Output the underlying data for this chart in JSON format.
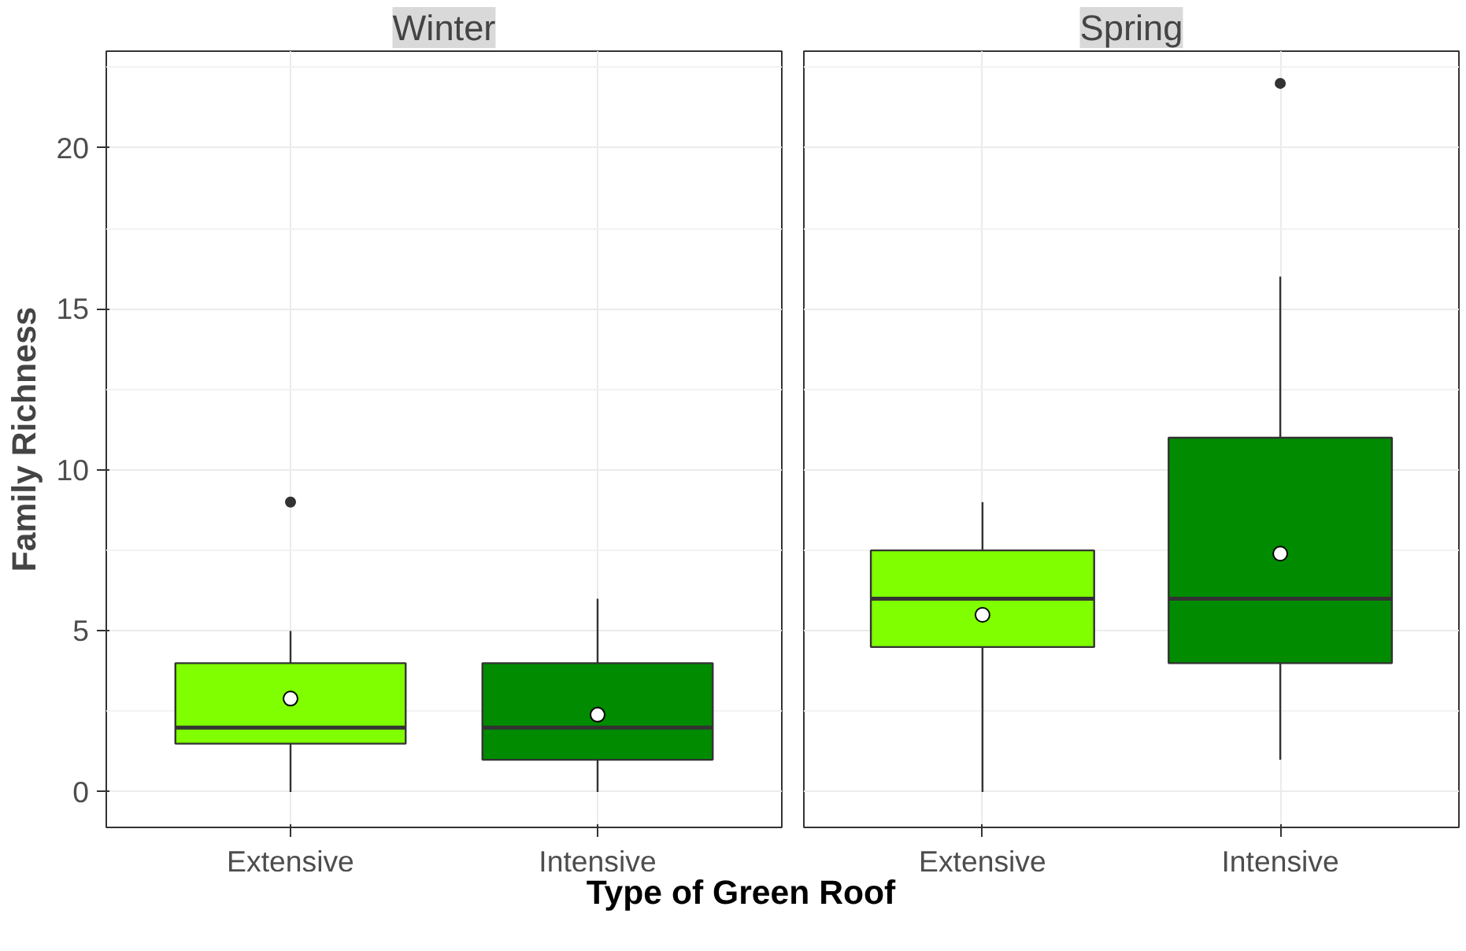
{
  "chart_data": [
    {
      "type": "box",
      "title": "Winter",
      "ylabel": "Family Richness",
      "xlabel": "Type of Green Roof",
      "categories": [
        "Extensive",
        "Intensive"
      ],
      "colors": [
        "#7fff00",
        "#008b00"
      ],
      "ylim": [
        -1.1,
        23
      ],
      "yticks": [
        0,
        5,
        10,
        15,
        20
      ],
      "grid": true,
      "boxes": [
        {
          "low": 0,
          "q1": 1.5,
          "median": 2,
          "q3": 4,
          "high": 5,
          "mean": 2.9,
          "outliers": [
            9
          ]
        },
        {
          "low": 0,
          "q1": 1,
          "median": 2,
          "q3": 4,
          "high": 6,
          "mean": 2.4
        }
      ]
    },
    {
      "type": "box",
      "title": "Spring",
      "categories": [
        "Extensive",
        "Intensive"
      ],
      "colors": [
        "#7fff00",
        "#008b00"
      ],
      "ylim": [
        -1.1,
        23
      ],
      "yticks": [
        0,
        5,
        10,
        15,
        20
      ],
      "grid": true,
      "tick_labels": "x",
      "boxes": [
        {
          "low": 0,
          "q1": 4.5,
          "median": 6,
          "q3": 7.5,
          "high": 9,
          "mean": 5.5
        },
        {
          "low": 1,
          "q1": 4,
          "median": 6,
          "q3": 11,
          "high": 16,
          "mean": 7.4,
          "outliers": [
            22
          ]
        }
      ]
    }
  ]
}
